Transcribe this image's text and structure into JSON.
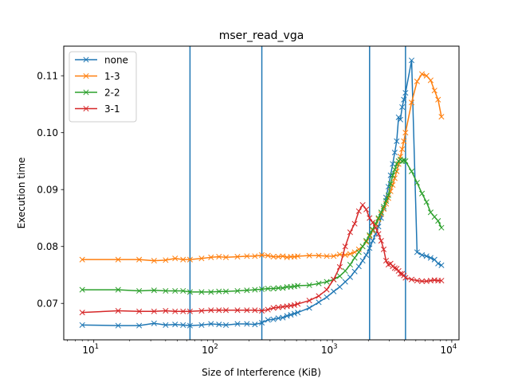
{
  "chart_data": {
    "type": "line",
    "title": "mser_read_vga",
    "xlabel": "Size of Interference (KiB)",
    "ylabel": "Execution time",
    "xscale": "log",
    "xlim": [
      5.6,
      11500
    ],
    "ylim": [
      0.0636,
      0.1152
    ],
    "xticks": [
      {
        "value": 10,
        "base": "10",
        "exp": "1"
      },
      {
        "value": 100,
        "base": "10",
        "exp": "2"
      },
      {
        "value": 1000,
        "base": "10",
        "exp": "3"
      },
      {
        "value": 10000,
        "base": "10",
        "exp": "4"
      }
    ],
    "yticks": [
      {
        "value": 0.07,
        "label": "0.07"
      },
      {
        "value": 0.08,
        "label": "0.08"
      },
      {
        "value": 0.09,
        "label": "0.09"
      },
      {
        "value": 0.1,
        "label": "0.10"
      },
      {
        "value": 0.11,
        "label": "0.11"
      }
    ],
    "vlines": [
      64,
      256,
      2048,
      4096
    ],
    "vline_color": "#1f77b4",
    "legend_position": "upper-left",
    "grid": false,
    "marker": "x",
    "series": [
      {
        "name": "none",
        "color": "#1f77b4",
        "points": [
          [
            8,
            0.0662
          ],
          [
            16,
            0.0661
          ],
          [
            24,
            0.0661
          ],
          [
            32,
            0.0665
          ],
          [
            40,
            0.0662
          ],
          [
            48,
            0.0663
          ],
          [
            56,
            0.0662
          ],
          [
            64,
            0.0661
          ],
          [
            80,
            0.0662
          ],
          [
            96,
            0.0664
          ],
          [
            112,
            0.0663
          ],
          [
            128,
            0.0662
          ],
          [
            160,
            0.0664
          ],
          [
            192,
            0.0664
          ],
          [
            224,
            0.0663
          ],
          [
            256,
            0.0666
          ],
          [
            288,
            0.0671
          ],
          [
            320,
            0.0672
          ],
          [
            352,
            0.0674
          ],
          [
            384,
            0.0675
          ],
          [
            416,
            0.0678
          ],
          [
            448,
            0.068
          ],
          [
            480,
            0.0682
          ],
          [
            512,
            0.0684
          ],
          [
            640,
            0.0692
          ],
          [
            768,
            0.0702
          ],
          [
            896,
            0.0711
          ],
          [
            1024,
            0.0721
          ],
          [
            1152,
            0.0729
          ],
          [
            1280,
            0.0738
          ],
          [
            1408,
            0.0746
          ],
          [
            1536,
            0.0756
          ],
          [
            1664,
            0.0765
          ],
          [
            1792,
            0.0775
          ],
          [
            1920,
            0.0785
          ],
          [
            2048,
            0.0797
          ],
          [
            2176,
            0.081
          ],
          [
            2304,
            0.0822
          ],
          [
            2432,
            0.0835
          ],
          [
            2560,
            0.085
          ],
          [
            2688,
            0.0867
          ],
          [
            2816,
            0.0886
          ],
          [
            2944,
            0.0905
          ],
          [
            3072,
            0.0925
          ],
          [
            3200,
            0.0945
          ],
          [
            3328,
            0.0965
          ],
          [
            3456,
            0.0985
          ],
          [
            3584,
            0.1027
          ],
          [
            3712,
            0.1023
          ],
          [
            3840,
            0.1045
          ],
          [
            3968,
            0.1058
          ],
          [
            4096,
            0.107
          ],
          [
            4608,
            0.1127
          ],
          [
            5120,
            0.079
          ],
          [
            5632,
            0.0785
          ],
          [
            6144,
            0.0783
          ],
          [
            6656,
            0.078
          ],
          [
            7168,
            0.0777
          ],
          [
            7680,
            0.077
          ],
          [
            8192,
            0.0767
          ]
        ]
      },
      {
        "name": "1-3",
        "color": "#ff7f0e",
        "points": [
          [
            8,
            0.0777
          ],
          [
            16,
            0.0777
          ],
          [
            24,
            0.0777
          ],
          [
            32,
            0.0775
          ],
          [
            40,
            0.0776
          ],
          [
            48,
            0.0779
          ],
          [
            56,
            0.0777
          ],
          [
            64,
            0.0777
          ],
          [
            80,
            0.0779
          ],
          [
            96,
            0.0781
          ],
          [
            112,
            0.0782
          ],
          [
            128,
            0.0781
          ],
          [
            160,
            0.0782
          ],
          [
            192,
            0.0783
          ],
          [
            224,
            0.0783
          ],
          [
            256,
            0.0785
          ],
          [
            288,
            0.0784
          ],
          [
            320,
            0.0782
          ],
          [
            352,
            0.0782
          ],
          [
            384,
            0.0783
          ],
          [
            416,
            0.0781
          ],
          [
            448,
            0.0782
          ],
          [
            480,
            0.0782
          ],
          [
            512,
            0.0783
          ],
          [
            640,
            0.0784
          ],
          [
            768,
            0.0784
          ],
          [
            896,
            0.0783
          ],
          [
            1024,
            0.0783
          ],
          [
            1152,
            0.0786
          ],
          [
            1280,
            0.0785
          ],
          [
            1408,
            0.0787
          ],
          [
            1536,
            0.079
          ],
          [
            1664,
            0.0795
          ],
          [
            1792,
            0.08
          ],
          [
            1920,
            0.0808
          ],
          [
            2048,
            0.0818
          ],
          [
            2176,
            0.0828
          ],
          [
            2304,
            0.0838
          ],
          [
            2432,
            0.0848
          ],
          [
            2560,
            0.0857
          ],
          [
            2688,
            0.0866
          ],
          [
            2816,
            0.0875
          ],
          [
            2944,
            0.0885
          ],
          [
            3072,
            0.0897
          ],
          [
            3200,
            0.0908
          ],
          [
            3328,
            0.092
          ],
          [
            3456,
            0.0932
          ],
          [
            3584,
            0.0945
          ],
          [
            3712,
            0.0958
          ],
          [
            3840,
            0.0971
          ],
          [
            3968,
            0.0985
          ],
          [
            4096,
            0.1
          ],
          [
            4608,
            0.1053
          ],
          [
            5120,
            0.109
          ],
          [
            5632,
            0.1103
          ],
          [
            6144,
            0.11
          ],
          [
            6656,
            0.1092
          ],
          [
            7168,
            0.1074
          ],
          [
            7680,
            0.1058
          ],
          [
            8192,
            0.1028
          ]
        ]
      },
      {
        "name": "2-2",
        "color": "#2ca02c",
        "points": [
          [
            8,
            0.0724
          ],
          [
            16,
            0.0724
          ],
          [
            24,
            0.0722
          ],
          [
            32,
            0.0723
          ],
          [
            40,
            0.0722
          ],
          [
            48,
            0.0722
          ],
          [
            56,
            0.0722
          ],
          [
            64,
            0.072
          ],
          [
            80,
            0.072
          ],
          [
            96,
            0.072
          ],
          [
            112,
            0.0721
          ],
          [
            128,
            0.0721
          ],
          [
            160,
            0.0722
          ],
          [
            192,
            0.0723
          ],
          [
            224,
            0.0724
          ],
          [
            256,
            0.0725
          ],
          [
            288,
            0.0726
          ],
          [
            320,
            0.0726
          ],
          [
            352,
            0.0727
          ],
          [
            384,
            0.0727
          ],
          [
            416,
            0.0729
          ],
          [
            448,
            0.0729
          ],
          [
            480,
            0.073
          ],
          [
            512,
            0.0731
          ],
          [
            640,
            0.0732
          ],
          [
            768,
            0.0735
          ],
          [
            896,
            0.0738
          ],
          [
            1024,
            0.0742
          ],
          [
            1152,
            0.0748
          ],
          [
            1280,
            0.0757
          ],
          [
            1408,
            0.0768
          ],
          [
            1536,
            0.078
          ],
          [
            1664,
            0.079
          ],
          [
            1792,
            0.08
          ],
          [
            1920,
            0.081
          ],
          [
            2048,
            0.082
          ],
          [
            2176,
            0.083
          ],
          [
            2304,
            0.084
          ],
          [
            2432,
            0.085
          ],
          [
            2560,
            0.086
          ],
          [
            2688,
            0.087
          ],
          [
            2816,
            0.088
          ],
          [
            2944,
            0.089
          ],
          [
            3072,
            0.091
          ],
          [
            3200,
            0.0925
          ],
          [
            3328,
            0.0935
          ],
          [
            3456,
            0.0945
          ],
          [
            3584,
            0.095
          ],
          [
            3712,
            0.0953
          ],
          [
            3840,
            0.095
          ],
          [
            3968,
            0.0951
          ],
          [
            4096,
            0.095
          ],
          [
            4608,
            0.0932
          ],
          [
            5120,
            0.0912
          ],
          [
            5632,
            0.0893
          ],
          [
            6144,
            0.0878
          ],
          [
            6656,
            0.086
          ],
          [
            7168,
            0.0852
          ],
          [
            7680,
            0.0845
          ],
          [
            8192,
            0.0833
          ]
        ]
      },
      {
        "name": "3-1",
        "color": "#d62728",
        "points": [
          [
            8,
            0.0684
          ],
          [
            16,
            0.0687
          ],
          [
            24,
            0.0686
          ],
          [
            32,
            0.0686
          ],
          [
            40,
            0.0687
          ],
          [
            48,
            0.0686
          ],
          [
            56,
            0.0686
          ],
          [
            64,
            0.0686
          ],
          [
            80,
            0.0687
          ],
          [
            96,
            0.0688
          ],
          [
            112,
            0.0688
          ],
          [
            128,
            0.0688
          ],
          [
            160,
            0.0688
          ],
          [
            192,
            0.0688
          ],
          [
            224,
            0.0688
          ],
          [
            256,
            0.0687
          ],
          [
            288,
            0.0689
          ],
          [
            320,
            0.0692
          ],
          [
            352,
            0.0693
          ],
          [
            384,
            0.0694
          ],
          [
            416,
            0.0695
          ],
          [
            448,
            0.0696
          ],
          [
            480,
            0.0697
          ],
          [
            512,
            0.0699
          ],
          [
            640,
            0.0705
          ],
          [
            768,
            0.0713
          ],
          [
            896,
            0.0724
          ],
          [
            1024,
            0.0742
          ],
          [
            1152,
            0.0764
          ],
          [
            1280,
            0.08
          ],
          [
            1408,
            0.0825
          ],
          [
            1536,
            0.084
          ],
          [
            1664,
            0.0862
          ],
          [
            1792,
            0.0873
          ],
          [
            1920,
            0.0865
          ],
          [
            2048,
            0.085
          ],
          [
            2176,
            0.0842
          ],
          [
            2304,
            0.0833
          ],
          [
            2432,
            0.0822
          ],
          [
            2560,
            0.081
          ],
          [
            2688,
            0.0795
          ],
          [
            2816,
            0.0775
          ],
          [
            2944,
            0.0768
          ],
          [
            3072,
            0.077
          ],
          [
            3200,
            0.0765
          ],
          [
            3328,
            0.0762
          ],
          [
            3456,
            0.0761
          ],
          [
            3584,
            0.0757
          ],
          [
            3712,
            0.0752
          ],
          [
            3840,
            0.0752
          ],
          [
            3968,
            0.0749
          ],
          [
            4096,
            0.0745
          ],
          [
            4608,
            0.0742
          ],
          [
            5120,
            0.074
          ],
          [
            5632,
            0.0739
          ],
          [
            6144,
            0.0739
          ],
          [
            6656,
            0.074
          ],
          [
            7168,
            0.0741
          ],
          [
            7680,
            0.074
          ],
          [
            8192,
            0.074
          ]
        ]
      }
    ]
  }
}
